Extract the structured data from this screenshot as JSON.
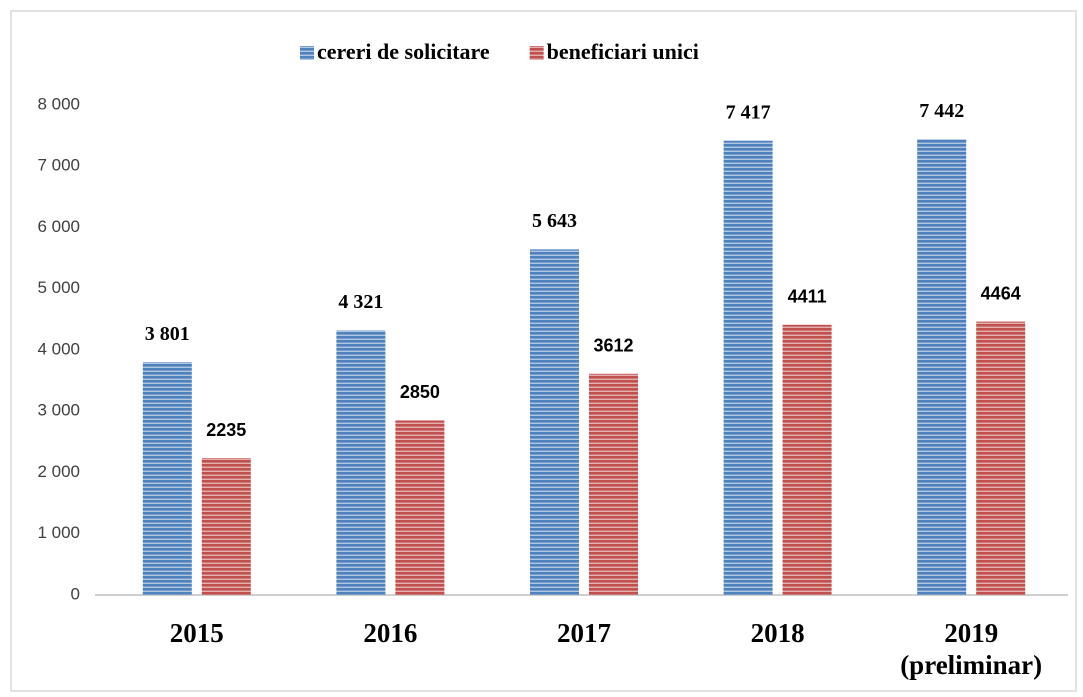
{
  "chart_data": {
    "type": "bar",
    "categories": [
      "2015",
      "2016",
      "2017",
      "2018",
      "2019 (preliminar)"
    ],
    "series": [
      {
        "name": "cereri de solicitare",
        "color": "#4f81bd",
        "values": [
          3801,
          4321,
          5643,
          7417,
          7442
        ],
        "value_labels": [
          "3 801",
          "4 321",
          "5 643",
          "7 417",
          "7 442"
        ]
      },
      {
        "name": "beneficiari unici",
        "color": "#c0504d",
        "values": [
          2235,
          2850,
          3612,
          4411,
          4464
        ]
      }
    ],
    "ylim": [
      0,
      8000
    ],
    "yticks": [
      0,
      {
        "value": 1000,
        "label": "1 000"
      },
      {
        "value": 2000,
        "label": "2 000"
      },
      {
        "value": 3000,
        "label": "3 000"
      },
      {
        "value": 4000,
        "label": "4 000"
      },
      {
        "value": 5000,
        "label": "5 000"
      },
      {
        "value": 6000,
        "label": "6 000"
      },
      {
        "value": 7000,
        "label": "7 000"
      },
      {
        "value": 8000,
        "label": "8 000"
      }
    ],
    "grid": false,
    "legend": "top"
  }
}
